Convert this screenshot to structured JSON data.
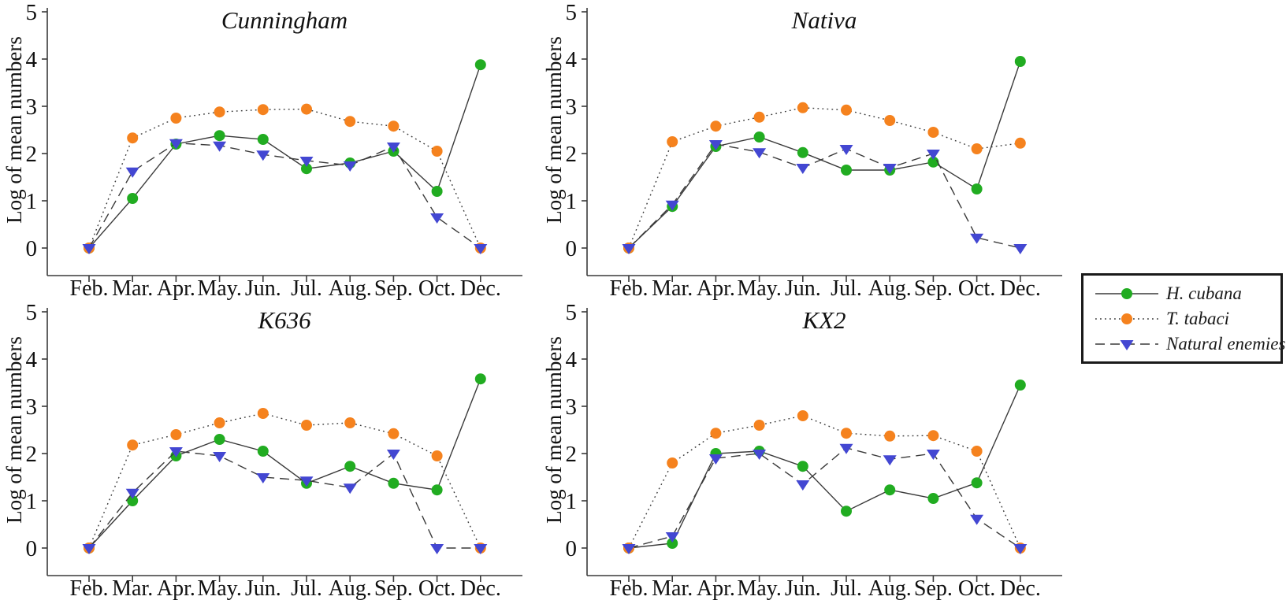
{
  "figure": {
    "ylabel": "Log of mean numbers",
    "categories": [
      "Feb.",
      "Mar.",
      "Apr.",
      "May.",
      "Jun.",
      "Jul.",
      "Aug.",
      "Sep.",
      "Oct.",
      "Dec."
    ],
    "yticks": [
      0,
      1,
      2,
      3,
      4,
      5
    ],
    "ylim": [
      0,
      5
    ]
  },
  "colors": {
    "h_cubana": "#21AC21",
    "t_tabaci": "#F5821E",
    "natural_enemies": "#4347D2",
    "line": "#3a3a3a",
    "text": "#111111"
  },
  "legend": {
    "position": "right",
    "entries": [
      {
        "label": "H. cubana",
        "marker": "circle",
        "line": "solid",
        "color": "#21AC21"
      },
      {
        "label": "T. tabaci",
        "marker": "circle",
        "line": "dotted",
        "color": "#F5821E"
      },
      {
        "label": "Natural enemies",
        "marker": "triangle-down",
        "line": "dashed",
        "color": "#4347D2"
      }
    ]
  },
  "chart_data": [
    {
      "type": "line",
      "title": "Cunningham",
      "xlabel": "",
      "ylabel": "Log of mean numbers",
      "ylim": [
        0,
        5
      ],
      "yticks": [
        0,
        1,
        2,
        3,
        4,
        5
      ],
      "grid": false,
      "categories": [
        "Feb.",
        "Mar.",
        "Apr.",
        "May.",
        "Jun.",
        "Jul.",
        "Aug.",
        "Sep.",
        "Oct.",
        "Dec."
      ],
      "series": [
        {
          "name": "H. cubana",
          "values": [
            0,
            1.05,
            2.2,
            2.38,
            2.3,
            1.68,
            1.8,
            2.05,
            1.2,
            3.88
          ]
        },
        {
          "name": "T. tabaci",
          "values": [
            0,
            2.33,
            2.75,
            2.88,
            2.93,
            2.94,
            2.68,
            2.58,
            2.05,
            0
          ]
        },
        {
          "name": "Natural enemies",
          "values": [
            0,
            1.62,
            2.22,
            2.17,
            1.98,
            1.85,
            1.75,
            2.15,
            0.65,
            0
          ]
        }
      ]
    },
    {
      "type": "line",
      "title": "Nativa",
      "xlabel": "",
      "ylabel": "Log of mean numbers",
      "ylim": [
        0,
        5
      ],
      "yticks": [
        0,
        1,
        2,
        3,
        4,
        5
      ],
      "grid": false,
      "categories": [
        "Feb.",
        "Mar.",
        "Apr.",
        "May.",
        "Jun.",
        "Jul.",
        "Aug.",
        "Sep.",
        "Oct.",
        "Dec."
      ],
      "series": [
        {
          "name": "H. cubana",
          "values": [
            0,
            0.88,
            2.15,
            2.35,
            2.02,
            1.65,
            1.65,
            1.82,
            1.25,
            3.95
          ]
        },
        {
          "name": "T. tabaci",
          "values": [
            0,
            2.25,
            2.58,
            2.77,
            2.97,
            2.92,
            2.7,
            2.45,
            2.1,
            2.22
          ]
        },
        {
          "name": "Natural enemies",
          "values": [
            0,
            0.92,
            2.2,
            2.03,
            1.7,
            2.1,
            1.7,
            2.0,
            0.22,
            0
          ]
        }
      ]
    },
    {
      "type": "line",
      "title": "K636",
      "xlabel": "",
      "ylabel": "Log of mean numbers",
      "ylim": [
        0,
        5
      ],
      "yticks": [
        0,
        1,
        2,
        3,
        4,
        5
      ],
      "grid": false,
      "categories": [
        "Feb.",
        "Mar.",
        "Apr.",
        "May.",
        "Jun.",
        "Jul.",
        "Aug.",
        "Sep.",
        "Oct.",
        "Dec."
      ],
      "series": [
        {
          "name": "H. cubana",
          "values": [
            0,
            1.0,
            1.95,
            2.3,
            2.05,
            1.37,
            1.73,
            1.37,
            1.23,
            3.58
          ]
        },
        {
          "name": "T. tabaci",
          "values": [
            0,
            2.18,
            2.4,
            2.65,
            2.85,
            2.6,
            2.65,
            2.42,
            1.95,
            0
          ]
        },
        {
          "name": "Natural enemies",
          "values": [
            0,
            1.17,
            2.05,
            1.95,
            1.5,
            1.43,
            1.28,
            2.0,
            0,
            0
          ]
        }
      ]
    },
    {
      "type": "line",
      "title": "KX2",
      "xlabel": "",
      "ylabel": "Log of mean numbers",
      "ylim": [
        0,
        5
      ],
      "yticks": [
        0,
        1,
        2,
        3,
        4,
        5
      ],
      "grid": false,
      "categories": [
        "Feb.",
        "Mar.",
        "Apr.",
        "May.",
        "Jun.",
        "Jul.",
        "Aug.",
        "Sep.",
        "Oct.",
        "Dec."
      ],
      "series": [
        {
          "name": "H. cubana",
          "values": [
            0,
            0.1,
            2.0,
            2.05,
            1.73,
            0.78,
            1.23,
            1.05,
            1.38,
            3.45
          ]
        },
        {
          "name": "T. tabaci",
          "values": [
            0,
            1.8,
            2.43,
            2.6,
            2.8,
            2.43,
            2.37,
            2.38,
            2.05,
            0
          ]
        },
        {
          "name": "Natural enemies",
          "values": [
            0,
            0.25,
            1.9,
            2.0,
            1.35,
            2.12,
            1.88,
            2.0,
            0.62,
            0
          ]
        }
      ]
    }
  ]
}
